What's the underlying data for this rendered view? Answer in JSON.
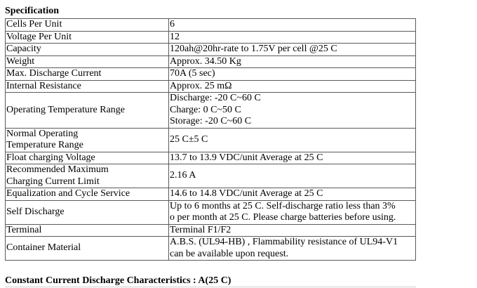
{
  "spec_heading": "Specification",
  "rows": [
    {
      "label": [
        "Cells Per Unit"
      ],
      "value": [
        "6"
      ]
    },
    {
      "label": [
        "Voltage Per Unit"
      ],
      "value": [
        "12"
      ]
    },
    {
      "label": [
        "Capacity"
      ],
      "value": [
        "120ah@20hr-rate to 1.75V per cell @25 C"
      ]
    },
    {
      "label": [
        "Weight"
      ],
      "value": [
        "Approx. 34.50 Kg"
      ]
    },
    {
      "label": [
        "Max. Discharge Current"
      ],
      "value": [
        "70A (5 sec)"
      ]
    },
    {
      "label": [
        "Internal Resistance"
      ],
      "value": [
        "Approx. 25 mΩ"
      ]
    },
    {
      "label": [
        "Operating Temperature Range"
      ],
      "value": [
        "Discharge: -20 C~60 C",
        "Charge: 0 C~50 C",
        "Storage: -20 C~60 C"
      ]
    },
    {
      "label": [
        "Normal Operating",
        "Temperature Range"
      ],
      "value": [
        "25 C±5 C"
      ]
    },
    {
      "label": [
        "Float charging Voltage"
      ],
      "value": [
        "13.7 to 13.9 VDC/unit Average at 25 C"
      ]
    },
    {
      "label": [
        "Recommended Maximum",
        "Charging Current Limit"
      ],
      "value": [
        "2.16 A"
      ]
    },
    {
      "label": [
        "Equalization and Cycle Service"
      ],
      "value": [
        "14.6 to 14.8 VDC/unit Average at 25 C"
      ]
    },
    {
      "label": [
        "Self Discharge"
      ],
      "value": [
        "Up to 6 months at 25 C. Self-discharge ratio less than 3%",
        "o per month at 25 C. Please charge batteries before using."
      ]
    },
    {
      "label": [
        "Terminal"
      ],
      "value": [
        "Terminal F1/F2"
      ]
    },
    {
      "label": [
        "Container Material"
      ],
      "value": [
        "A.B.S. (UL94-HB) , Flammability resistance of UL94-V1",
        "can be available upon request."
      ]
    }
  ],
  "discharge_heading": "Constant Current Discharge Characteristics : A(25 C)"
}
